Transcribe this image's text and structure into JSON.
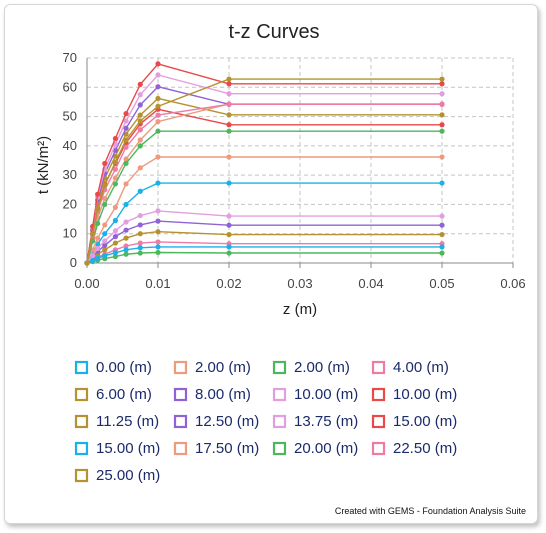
{
  "chart_data": {
    "type": "line",
    "title": "t-z Curves",
    "xlabel": "z  (m)",
    "ylabel": "t  (kN/m²)",
    "xlim": [
      0,
      0.06
    ],
    "ylim": [
      0,
      70
    ],
    "xticks": [
      "0.00",
      "0.01",
      "0.02",
      "0.03",
      "0.04",
      "0.05",
      "0.06"
    ],
    "yticks": [
      "0",
      "10",
      "20",
      "30",
      "40",
      "50",
      "60",
      "70"
    ],
    "grid": true,
    "legend_position": "bottom",
    "x": [
      0,
      0.0008,
      0.0015,
      0.0025,
      0.004,
      0.0055,
      0.0075,
      0.01,
      0.02,
      0.05
    ],
    "series": [
      {
        "name": "0.00  (m)",
        "color": "#1ab0e8",
        "values": [
          0,
          3.5,
          6.5,
          10,
          14.5,
          20,
          24.5,
          27.3,
          27.3,
          27.3
        ]
      },
      {
        "name": "2.00  (m)",
        "color": "#ee9a7e",
        "values": [
          0,
          4.5,
          8.5,
          13,
          19,
          27,
          32.5,
          36.2,
          36.2,
          36.2
        ]
      },
      {
        "name": "2.00  (m)",
        "color": "#4cb75c",
        "values": [
          0,
          0.5,
          1,
          1.5,
          2.2,
          3,
          3.4,
          3.6,
          3.4,
          3.4
        ]
      },
      {
        "name": "4.00  (m)",
        "color": "#ef7aa6",
        "values": [
          0,
          1,
          2,
          3,
          4.5,
          5.8,
          6.8,
          7.2,
          6.6,
          6.6
        ]
      },
      {
        "name": "6.00  (m)",
        "color": "#b5922f",
        "values": [
          0,
          1.5,
          3,
          4.5,
          6.8,
          8.5,
          10,
          10.7,
          9.7,
          9.7
        ]
      },
      {
        "name": "8.00  (m)",
        "color": "#8f63d6",
        "values": [
          0,
          2,
          4,
          6,
          9,
          11.2,
          13,
          14.3,
          12.9,
          12.9
        ]
      },
      {
        "name": "10.00  (m)",
        "color": "#e39ee0",
        "values": [
          0,
          2.5,
          5,
          7.5,
          11,
          14,
          16.2,
          17.8,
          16,
          16
        ]
      },
      {
        "name": "10.00  (m)",
        "color": "#e84a4a",
        "values": [
          0,
          10,
          19,
          27,
          34,
          41,
          47.5,
          52.5,
          47.2,
          47.2
        ]
      },
      {
        "name": "11.25  (m)",
        "color": "#b5922f",
        "values": [
          0,
          11,
          20.5,
          29,
          36.5,
          44,
          50.5,
          56.2,
          50.6,
          50.6
        ]
      },
      {
        "name": "12.50  (m)",
        "color": "#8f63d6",
        "values": [
          0,
          11.5,
          21.5,
          30.5,
          38.5,
          46,
          54,
          60.2,
          54.2,
          54.2
        ]
      },
      {
        "name": "13.75  (m)",
        "color": "#e39ee0",
        "values": [
          0,
          12,
          22.5,
          32,
          40.5,
          48.5,
          57.5,
          64.2,
          57.8,
          57.8
        ]
      },
      {
        "name": "15.00  (m)",
        "color": "#e84a4a",
        "values": [
          0,
          12.5,
          23.5,
          34,
          42.5,
          51,
          61,
          68,
          61.2,
          61.2
        ]
      },
      {
        "name": "15.00  (m)",
        "color": "#1ab0e8",
        "values": [
          0,
          0.8,
          1.6,
          2.5,
          3.5,
          4.5,
          5.2,
          5.5,
          5.5,
          5.5
        ]
      },
      {
        "name": "17.50  (m)",
        "color": "#ee9a7e",
        "values": [
          0,
          8.5,
          15.5,
          22,
          29,
          35.5,
          42,
          48.3,
          54.3,
          54.3
        ]
      },
      {
        "name": "20.00  (m)",
        "color": "#4cb75c",
        "values": [
          0,
          7.5,
          13.5,
          20,
          27,
          34,
          40,
          45,
          45,
          45
        ]
      },
      {
        "name": "22.50  (m)",
        "color": "#ef7aa6",
        "values": [
          0,
          9.5,
          17.5,
          25,
          32,
          39.5,
          45.5,
          50.5,
          54.2,
          54.2
        ]
      },
      {
        "name": "25.00  (m)",
        "color": "#b5922f",
        "values": [
          0,
          10,
          18.5,
          26.5,
          34.5,
          42,
          48.5,
          53.5,
          62.8,
          62.8
        ]
      }
    ]
  },
  "credit": "Created with GEMS - Foundation Analysis Suite"
}
